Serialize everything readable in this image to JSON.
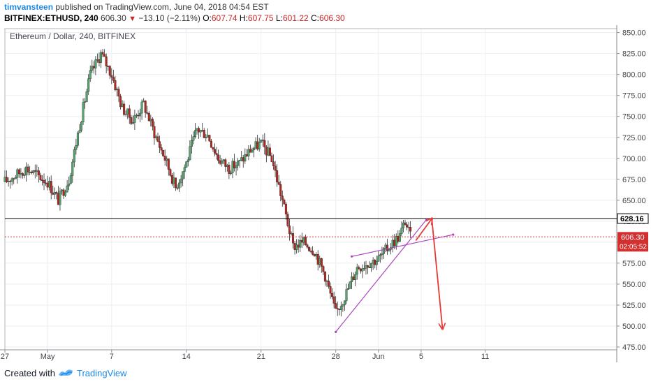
{
  "header": {
    "author": "timvansteen",
    "published": " published on TradingView.com, June 04, 2018 04:54 EST",
    "symbol": "BITFINEX:ETHUSD, 240",
    "price": "606.30",
    "change": "−13.10 (−2.11%)",
    "o_label": "O:",
    "o_value": "607.74",
    "h_label": "H:",
    "h_value": "607.75",
    "l_label": "L:",
    "l_value": "601.22",
    "c_label": "C:",
    "c_value": "606.30"
  },
  "chart_title": "Ethereum / Dollar, 240, BITFINEX",
  "footer": {
    "created_with": "Created with",
    "brand": "TradingView"
  },
  "colors": {
    "up": "#53a66d",
    "down": "#b5261e",
    "resistance": "#000000",
    "current": "#d32f2f",
    "trend": "#ab47bc",
    "arrow": "#e53935"
  },
  "chart_data": {
    "type": "candlestick",
    "title": "Ethereum / Dollar, 240, BITFINEX",
    "ylim": [
      475,
      850
    ],
    "y_ticks": [
      475,
      500,
      525,
      550,
      575,
      600,
      625,
      650,
      675,
      700,
      725,
      750,
      775,
      800,
      825,
      850
    ],
    "x_tick_labels": [
      "27",
      "May",
      "7",
      "14",
      "21",
      "28",
      "Jun",
      "5",
      "11"
    ],
    "horizontal_line": 628.16,
    "horizontal_line_label": "628.16",
    "current_price": 606.3,
    "current_price_label": "606.30",
    "countdown_label": "02:05:52",
    "waypoints": [
      [
        "Apr 27",
        672
      ],
      [
        "Apr 29",
        688
      ],
      [
        "May 1",
        672
      ],
      [
        "May 2",
        650
      ],
      [
        "May 3",
        675
      ],
      [
        "May 4",
        740
      ],
      [
        "May 5",
        800
      ],
      [
        "May 6",
        825
      ],
      [
        "May 7",
        800
      ],
      [
        "May 8",
        760
      ],
      [
        "May 9",
        745
      ],
      [
        "May 10",
        765
      ],
      [
        "May 11",
        730
      ],
      [
        "May 12",
        700
      ],
      [
        "May 13",
        665
      ],
      [
        "May 14",
        695
      ],
      [
        "May 15",
        735
      ],
      [
        "May 16",
        728
      ],
      [
        "May 17",
        700
      ],
      [
        "May 18",
        688
      ],
      [
        "May 19",
        695
      ],
      [
        "May 20",
        710
      ],
      [
        "May 21",
        718
      ],
      [
        "May 22",
        700
      ],
      [
        "May 23",
        650
      ],
      [
        "May 24",
        595
      ],
      [
        "May 25",
        600
      ],
      [
        "May 26",
        590
      ],
      [
        "May 27",
        560
      ],
      [
        "May 28",
        515
      ],
      [
        "May 29",
        540
      ],
      [
        "May 30",
        570
      ],
      [
        "May 31",
        575
      ],
      [
        "Jun 1",
        580
      ],
      [
        "Jun 2",
        595
      ],
      [
        "Jun 3",
        608
      ],
      [
        "Jun 3 12h",
        625
      ],
      [
        "Jun 4",
        606.3
      ]
    ],
    "annotations": [
      {
        "type": "trendline",
        "from": [
          "May 28",
          493
        ],
        "to": [
          "Jun 5 12h",
          627
        ]
      },
      {
        "type": "trendline",
        "from": [
          "May 29 12h",
          583
        ],
        "to": [
          "Jun 8",
          609
        ]
      },
      {
        "type": "arrow",
        "from": [
          "Jun 4 12h",
          602
        ],
        "to": [
          "Jun 6",
          628
        ]
      },
      {
        "type": "arrow",
        "from": [
          "Jun 6",
          628
        ],
        "to": [
          "Jun 7",
          497
        ]
      }
    ]
  }
}
